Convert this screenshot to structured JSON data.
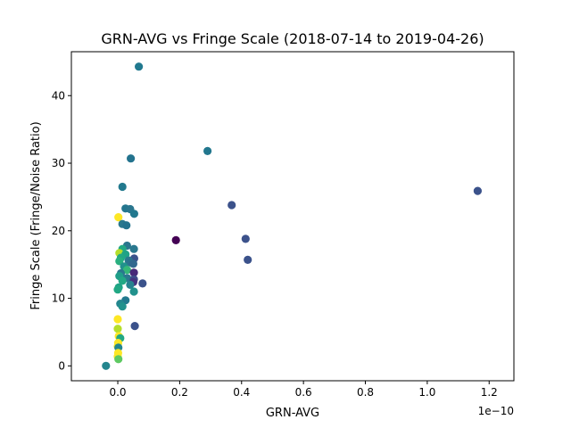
{
  "chart_data": {
    "type": "scatter",
    "title": "GRN-AVG vs Fringe Scale (2018-07-14 to 2019-04-26)",
    "xlabel": "GRN-AVG",
    "ylabel": "Fringe Scale (Fringe/Noise Ratio)",
    "x_offset_text": "1e−10",
    "x_scale_exponent": -10,
    "xlim": [
      -0.15,
      1.28
    ],
    "ylim": [
      -2.2,
      46.5
    ],
    "x_ticks": [
      0.0,
      0.2,
      0.4,
      0.6,
      0.8,
      1.0,
      1.2
    ],
    "x_tick_labels": [
      "0.0",
      "0.2",
      "0.4",
      "0.6",
      "0.8",
      "1.0",
      "1.2"
    ],
    "y_ticks": [
      0,
      10,
      20,
      30,
      40
    ],
    "y_tick_labels": [
      "0",
      "10",
      "20",
      "30",
      "40"
    ],
    "grid": false,
    "colormap": "viridis",
    "points": [
      {
        "x": 0.068,
        "y": 44.3,
        "color": "#21798f"
      },
      {
        "x": 0.29,
        "y": 31.8,
        "color": "#22778e"
      },
      {
        "x": 0.042,
        "y": 30.7,
        "color": "#23738e"
      },
      {
        "x": 1.163,
        "y": 25.9,
        "color": "#3b528b"
      },
      {
        "x": 0.015,
        "y": 26.5,
        "color": "#22798e"
      },
      {
        "x": 0.368,
        "y": 23.8,
        "color": "#3c528b"
      },
      {
        "x": 0.025,
        "y": 23.3,
        "color": "#24768e"
      },
      {
        "x": 0.04,
        "y": 23.2,
        "color": "#2a768e"
      },
      {
        "x": 0.053,
        "y": 22.5,
        "color": "#21788e"
      },
      {
        "x": 0.002,
        "y": 22.0,
        "color": "#fde725"
      },
      {
        "x": 0.015,
        "y": 21.0,
        "color": "#2a788e"
      },
      {
        "x": 0.028,
        "y": 20.8,
        "color": "#24738e"
      },
      {
        "x": 0.413,
        "y": 18.8,
        "color": "#3c528b"
      },
      {
        "x": 0.188,
        "y": 18.6,
        "color": "#440154"
      },
      {
        "x": 0.03,
        "y": 17.8,
        "color": "#2a768e"
      },
      {
        "x": 0.015,
        "y": 17.3,
        "color": "#22a884"
      },
      {
        "x": 0.052,
        "y": 17.3,
        "color": "#2a788e"
      },
      {
        "x": 0.005,
        "y": 16.7,
        "color": "#b5de2b"
      },
      {
        "x": 0.025,
        "y": 16.5,
        "color": "#20a386"
      },
      {
        "x": 0.01,
        "y": 16.0,
        "color": "#22a884"
      },
      {
        "x": 0.42,
        "y": 15.7,
        "color": "#3b528b"
      },
      {
        "x": 0.053,
        "y": 15.9,
        "color": "#3b528b"
      },
      {
        "x": 0.035,
        "y": 15.6,
        "color": "#2a788e"
      },
      {
        "x": 0.005,
        "y": 15.5,
        "color": "#29af7f"
      },
      {
        "x": 0.04,
        "y": 15.3,
        "color": "#2c728e"
      },
      {
        "x": 0.05,
        "y": 15.1,
        "color": "#31688e"
      },
      {
        "x": 0.02,
        "y": 14.7,
        "color": "#21918c"
      },
      {
        "x": 0.03,
        "y": 14.2,
        "color": "#35b779"
      },
      {
        "x": 0.01,
        "y": 13.7,
        "color": "#2a788e"
      },
      {
        "x": 0.052,
        "y": 13.8,
        "color": "#482878"
      },
      {
        "x": 0.005,
        "y": 13.3,
        "color": "#1f9e89"
      },
      {
        "x": 0.03,
        "y": 13.0,
        "color": "#2a788e"
      },
      {
        "x": 0.052,
        "y": 12.8,
        "color": "#3e4a89"
      },
      {
        "x": 0.015,
        "y": 12.6,
        "color": "#22a884"
      },
      {
        "x": 0.08,
        "y": 12.2,
        "color": "#3b528b"
      },
      {
        "x": 0.05,
        "y": 12.4,
        "color": "#46337f"
      },
      {
        "x": 0.04,
        "y": 12.0,
        "color": "#26828e"
      },
      {
        "x": 0.003,
        "y": 11.6,
        "color": "#20a386"
      },
      {
        "x": 0.0,
        "y": 11.3,
        "color": "#22a884"
      },
      {
        "x": 0.052,
        "y": 11.0,
        "color": "#21918c"
      },
      {
        "x": 0.025,
        "y": 9.7,
        "color": "#22798e"
      },
      {
        "x": 0.008,
        "y": 9.2,
        "color": "#24868e"
      },
      {
        "x": 0.015,
        "y": 8.8,
        "color": "#21918c"
      },
      {
        "x": 0.0,
        "y": 6.9,
        "color": "#fde725"
      },
      {
        "x": 0.055,
        "y": 5.9,
        "color": "#3b528b"
      },
      {
        "x": 0.0,
        "y": 5.5,
        "color": "#b5de2b"
      },
      {
        "x": 0.003,
        "y": 4.4,
        "color": "#fde725"
      },
      {
        "x": 0.008,
        "y": 4.1,
        "color": "#22a884"
      },
      {
        "x": 0.001,
        "y": 3.4,
        "color": "#fde725"
      },
      {
        "x": 0.0,
        "y": 2.9,
        "color": "#fde725"
      },
      {
        "x": 0.002,
        "y": 2.7,
        "color": "#24868e"
      },
      {
        "x": 0.001,
        "y": 1.9,
        "color": "#fde725"
      },
      {
        "x": 0.0,
        "y": 1.4,
        "color": "#fde725"
      },
      {
        "x": 0.002,
        "y": 1.0,
        "color": "#5ec962"
      },
      {
        "x": -0.038,
        "y": 0.0,
        "color": "#24868e"
      }
    ]
  }
}
